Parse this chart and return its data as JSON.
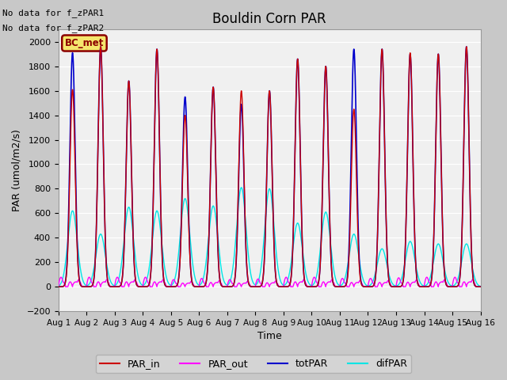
{
  "title": "Bouldin Corn PAR",
  "xlabel": "Time",
  "ylabel": "PAR (umol/m2/s)",
  "ylim": [
    -200,
    2100
  ],
  "yticks": [
    -200,
    0,
    200,
    400,
    600,
    800,
    1000,
    1200,
    1400,
    1600,
    1800,
    2000
  ],
  "annotation1": "No data for f_zPAR1",
  "annotation2": "No data for f_zPAR2",
  "legend_label": "BC_met",
  "legend_bg": "#f5e66d",
  "legend_border": "#8b0000",
  "colors": {
    "PAR_in": "#cc0000",
    "PAR_out": "#ff00ff",
    "totPAR": "#0000cc",
    "difPAR": "#00e5e5"
  },
  "tot_peaks": [
    1910,
    1960,
    1680,
    1940,
    1550,
    1630,
    1490,
    1600,
    1860,
    1800,
    1940,
    1940,
    1900,
    1900,
    1960
  ],
  "par_in_peaks": [
    1610,
    1960,
    1680,
    1940,
    1400,
    1630,
    1600,
    1600,
    1860,
    1800,
    1450,
    1940,
    1910,
    1900,
    1960
  ],
  "par_out_peaks": [
    80,
    80,
    80,
    80,
    60,
    70,
    60,
    65,
    80,
    80,
    70,
    70,
    75,
    80,
    80
  ],
  "dif_peaks": [
    620,
    430,
    650,
    620,
    720,
    660,
    810,
    800,
    520,
    610,
    430,
    310,
    370,
    350,
    350
  ],
  "sigma": 2.2,
  "fig_bg": "#c8c8c8",
  "plot_bg": "#f0f0f0"
}
